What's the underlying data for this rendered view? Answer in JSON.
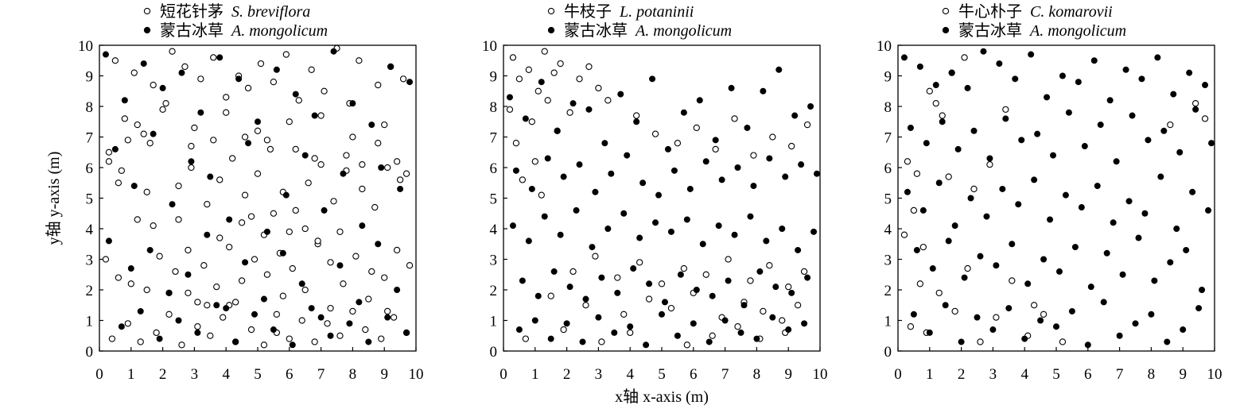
{
  "chart_data": [
    {
      "type": "scatter",
      "xlim": [
        0,
        10
      ],
      "ylim": [
        0,
        10
      ],
      "xticks": [
        "0",
        "1",
        "2",
        "3",
        "4",
        "5",
        "6",
        "7",
        "8",
        "9",
        "10"
      ],
      "yticks": [
        "0",
        "1",
        "2",
        "3",
        "4",
        "5",
        "6",
        "7",
        "8",
        "9",
        "10"
      ],
      "ylabel": "y轴 y-axis (m)",
      "grid": false,
      "legend_position": "top",
      "series": [
        {
          "name": "短花针茅",
          "name_latin": "S. breviflora",
          "marker": "open-circle",
          "color": "#000000",
          "x": [
            0.3,
            0.7,
            1.2,
            1.6,
            2.1,
            2.5,
            2.9,
            3.4,
            3.8,
            4.2,
            4.6,
            5.0,
            5.4,
            5.8,
            6.2,
            6.6,
            7.0,
            7.4,
            7.8,
            8.3,
            8.7,
            9.1,
            9.5,
            0.2,
            0.6,
            1.0,
            1.5,
            1.9,
            2.4,
            2.8,
            3.3,
            3.7,
            4.1,
            4.5,
            4.9,
            5.3,
            5.7,
            6.1,
            6.5,
            6.9,
            7.3,
            7.7,
            8.1,
            8.6,
            9.0,
            9.4,
            9.8,
            0.4,
            0.9,
            1.3,
            1.8,
            2.2,
            2.6,
            3.1,
            3.5,
            3.9,
            4.3,
            4.8,
            5.2,
            5.6,
            6.0,
            6.4,
            6.8,
            7.2,
            7.6,
            8.0,
            8.4,
            8.9,
            9.3,
            9.7,
            0.5,
            1.1,
            1.7,
            2.3,
            2.7,
            3.2,
            3.6,
            4.0,
            4.4,
            4.7,
            5.1,
            5.5,
            5.9,
            6.3,
            6.7,
            7.1,
            7.5,
            7.9,
            8.2,
            8.8,
            9.2,
            9.6,
            0.8,
            1.4,
            2.0,
            3.0,
            4.0,
            5.0,
            6.0,
            7.0,
            8.0,
            9.0,
            4.5,
            5.5,
            6.5,
            5.2,
            4.8,
            6.0,
            5.8,
            4.3,
            3.4,
            2.8,
            7.3,
            8.5,
            9.1,
            1.2,
            0.6,
            0.3,
            1.7,
            2.5,
            3.8,
            6.9,
            7.6,
            5.6,
            4.1,
            3.1,
            2.2,
            8.8,
            9.4,
            9.7,
            0.9,
            1.5,
            2.9,
            3.6,
            4.6,
            5.3,
            6.2,
            6.8,
            7.8,
            8.3
          ],
          "y": [
            6.2,
            5.9,
            7.4,
            6.8,
            8.1,
            5.4,
            6.0,
            4.8,
            5.6,
            6.3,
            5.1,
            5.8,
            6.6,
            5.2,
            4.6,
            5.5,
            6.1,
            4.9,
            6.4,
            5.3,
            4.7,
            6.0,
            5.6,
            3.0,
            2.4,
            2.2,
            2.0,
            3.1,
            2.6,
            3.3,
            2.8,
            2.1,
            3.4,
            2.3,
            3.0,
            2.5,
            3.2,
            2.7,
            2.0,
            3.5,
            2.9,
            2.2,
            3.1,
            2.6,
            2.4,
            3.3,
            2.8,
            0.4,
            0.9,
            0.3,
            0.6,
            1.2,
            0.2,
            0.8,
            0.5,
            1.1,
            0.3,
            0.7,
            0.2,
            0.6,
            0.4,
            1.0,
            0.3,
            0.9,
            0.5,
            1.3,
            0.7,
            0.4,
            1.1,
            0.6,
            9.5,
            9.1,
            8.7,
            9.8,
            9.3,
            8.9,
            9.6,
            8.3,
            9.0,
            8.6,
            9.4,
            8.8,
            9.7,
            8.2,
            9.2,
            8.5,
            9.9,
            8.1,
            9.5,
            8.7,
            9.3,
            8.9,
            7.6,
            7.1,
            7.9,
            7.3,
            7.8,
            7.2,
            7.5,
            7.7,
            7.0,
            7.4,
            4.2,
            4.5,
            4.0,
            3.8,
            4.4,
            3.9,
            1.8,
            1.6,
            1.5,
            1.9,
            1.4,
            1.7,
            1.3,
            4.3,
            5.5,
            6.5,
            4.1,
            4.3,
            3.7,
            3.6,
            3.9,
            1.2,
            1.5,
            1.6,
            1.9,
            6.8,
            6.2,
            5.8,
            6.9,
            5.2,
            6.7,
            6.9,
            7.0,
            6.9,
            6.6,
            6.3,
            5.9,
            6.1
          ]
        },
        {
          "name": "蒙古冰草",
          "name_latin": "A. mongolicum",
          "marker": "filled-circle",
          "color": "#000000",
          "x": [
            0.2,
            0.8,
            1.4,
            2.0,
            2.6,
            3.2,
            3.8,
            4.4,
            5.0,
            5.6,
            6.2,
            6.8,
            7.4,
            8.0,
            8.6,
            9.2,
            9.8,
            0.5,
            1.1,
            1.7,
            2.3,
            2.9,
            3.5,
            4.1,
            4.7,
            5.3,
            5.9,
            6.5,
            7.1,
            7.7,
            8.3,
            8.9,
            9.5,
            0.3,
            1.0,
            1.6,
            2.2,
            2.8,
            3.4,
            4.0,
            4.6,
            5.2,
            5.8,
            6.4,
            7.0,
            7.6,
            8.2,
            8.8,
            9.4,
            0.7,
            1.3,
            1.9,
            2.5,
            3.1,
            3.7,
            4.3,
            4.9,
            5.5,
            6.1,
            6.7,
            7.3,
            7.9,
            8.5,
            9.1,
            9.7
          ],
          "y": [
            9.7,
            8.2,
            9.4,
            8.6,
            9.1,
            7.8,
            9.6,
            8.9,
            7.5,
            9.2,
            8.4,
            7.7,
            9.8,
            8.1,
            7.4,
            9.3,
            8.8,
            6.6,
            5.4,
            7.1,
            4.8,
            6.2,
            5.7,
            4.3,
            6.8,
            3.9,
            5.1,
            6.4,
            4.6,
            5.8,
            4.1,
            6.0,
            5.3,
            3.6,
            2.7,
            3.3,
            1.9,
            2.5,
            3.8,
            1.4,
            2.9,
            1.7,
            3.2,
            2.2,
            1.1,
            2.8,
            1.6,
            3.5,
            2.0,
            0.8,
            1.3,
            0.4,
            1.0,
            0.6,
            1.5,
            0.3,
            1.2,
            0.7,
            0.2,
            1.4,
            0.5,
            0.9,
            0.3,
            1.1,
            0.6
          ]
        }
      ]
    },
    {
      "type": "scatter",
      "xlim": [
        0,
        10
      ],
      "ylim": [
        0,
        10
      ],
      "xticks": [
        "0",
        "1",
        "2",
        "3",
        "4",
        "5",
        "6",
        "7",
        "8",
        "9",
        "10"
      ],
      "yticks": [
        "0",
        "1",
        "2",
        "3",
        "4",
        "5",
        "6",
        "7",
        "8",
        "9",
        "10"
      ],
      "xlabel": "x轴 x-axis (m)",
      "grid": false,
      "legend_position": "top",
      "series": [
        {
          "name": "牛枝子",
          "name_latin": "L. potaninii",
          "marker": "open-circle",
          "color": "#000000",
          "x": [
            0.3,
            0.8,
            1.3,
            1.8,
            0.5,
            1.1,
            1.6,
            0.2,
            0.9,
            1.4,
            2.1,
            0.4,
            1.0,
            1.7,
            0.6,
            1.2,
            2.4,
            3.0,
            2.7,
            3.3,
            4.2,
            4.8,
            5.5,
            6.1,
            6.7,
            7.3,
            7.9,
            8.5,
            9.1,
            9.6,
            2.2,
            2.9,
            3.6,
            4.3,
            5.0,
            5.7,
            6.4,
            7.1,
            7.8,
            8.4,
            9.0,
            9.5,
            1.5,
            2.6,
            3.8,
            4.6,
            5.3,
            6.0,
            6.9,
            7.6,
            8.2,
            8.8,
            9.3,
            0.7,
            1.9,
            3.1,
            4.0,
            5.8,
            6.6,
            7.4,
            8.1,
            8.9
          ],
          "y": [
            9.6,
            9.2,
            9.8,
            9.4,
            8.9,
            8.5,
            9.1,
            7.9,
            7.5,
            8.2,
            7.8,
            6.8,
            6.2,
            7.2,
            5.6,
            5.1,
            8.9,
            8.6,
            9.3,
            8.2,
            7.7,
            7.1,
            6.8,
            7.3,
            6.6,
            7.6,
            6.4,
            7.0,
            6.7,
            7.4,
            2.6,
            3.1,
            2.4,
            2.9,
            2.2,
            2.7,
            2.5,
            3.0,
            2.3,
            2.8,
            2.1,
            2.6,
            1.8,
            1.5,
            1.2,
            1.7,
            1.4,
            1.9,
            1.1,
            1.6,
            1.3,
            1.0,
            1.5,
            0.4,
            0.7,
            0.3,
            0.6,
            0.2,
            0.5,
            0.8,
            0.4,
            0.6
          ]
        },
        {
          "name": "蒙古冰草",
          "name_latin": "A. mongolicum",
          "marker": "filled-circle",
          "color": "#000000",
          "x": [
            0.2,
            0.7,
            1.2,
            1.7,
            2.2,
            2.7,
            3.2,
            3.7,
            4.2,
            4.7,
            5.2,
            5.7,
            6.2,
            6.7,
            7.2,
            7.7,
            8.2,
            8.7,
            9.2,
            9.7,
            0.4,
            0.9,
            1.4,
            1.9,
            2.4,
            2.9,
            3.4,
            3.9,
            4.4,
            4.9,
            5.4,
            5.9,
            6.4,
            6.9,
            7.4,
            7.9,
            8.4,
            8.9,
            9.4,
            9.9,
            0.3,
            0.8,
            1.3,
            1.8,
            2.3,
            2.8,
            3.3,
            3.8,
            4.3,
            4.8,
            5.3,
            5.8,
            6.3,
            6.8,
            7.3,
            7.8,
            8.3,
            8.8,
            9.3,
            9.8,
            0.6,
            1.1,
            1.6,
            2.1,
            2.6,
            3.1,
            3.6,
            4.1,
            4.6,
            5.1,
            5.6,
            6.1,
            6.6,
            7.1,
            7.6,
            8.1,
            8.6,
            9.1,
            9.6,
            0.5,
            1.0,
            1.5,
            2.0,
            2.5,
            3.0,
            3.5,
            4.0,
            4.5,
            5.0,
            5.5,
            6.0,
            6.5,
            7.0,
            7.5,
            8.0,
            8.5,
            9.0,
            9.5
          ],
          "y": [
            8.3,
            7.6,
            8.8,
            7.2,
            8.1,
            7.9,
            6.8,
            8.4,
            7.5,
            8.9,
            6.6,
            7.8,
            8.2,
            6.9,
            8.6,
            7.3,
            8.5,
            9.2,
            7.7,
            8.0,
            5.9,
            5.3,
            6.3,
            5.7,
            6.1,
            5.2,
            5.8,
            6.4,
            5.5,
            5.1,
            5.9,
            5.3,
            6.2,
            5.6,
            6.0,
            5.4,
            6.3,
            5.7,
            6.1,
            5.8,
            4.1,
            3.6,
            4.4,
            3.8,
            4.6,
            3.4,
            4.0,
            4.5,
            3.7,
            4.2,
            3.9,
            4.3,
            3.5,
            4.1,
            3.8,
            4.4,
            3.6,
            4.0,
            3.3,
            3.9,
            2.3,
            1.8,
            2.6,
            2.1,
            1.7,
            2.4,
            1.9,
            2.7,
            2.2,
            1.6,
            2.5,
            2.0,
            1.8,
            2.3,
            1.5,
            2.6,
            2.1,
            1.9,
            2.4,
            0.7,
            1.0,
            0.4,
            0.9,
            0.3,
            1.1,
            0.6,
            0.8,
            0.2,
            1.2,
            0.5,
            0.9,
            0.3,
            1.0,
            0.6,
            0.4,
            1.1,
            0.7,
            0.9
          ]
        }
      ]
    },
    {
      "type": "scatter",
      "xlim": [
        0,
        10
      ],
      "ylim": [
        0,
        10
      ],
      "xticks": [
        "0",
        "1",
        "2",
        "3",
        "4",
        "5",
        "6",
        "7",
        "8",
        "9",
        "10"
      ],
      "yticks": [
        "0",
        "1",
        "2",
        "3",
        "4",
        "5",
        "6",
        "7",
        "8",
        "9",
        "10"
      ],
      "grid": false,
      "legend_position": "top",
      "series": [
        {
          "name": "牛心朴子",
          "name_latin": "C. komarovii",
          "marker": "open-circle",
          "color": "#000000",
          "x": [
            0.3,
            0.6,
            1.2,
            1.7,
            2.1,
            1.0,
            1.4,
            0.2,
            0.5,
            0.8,
            1.6,
            2.4,
            2.9,
            3.4,
            0.4,
            0.9,
            1.8,
            2.6,
            3.1,
            4.1,
            4.6,
            5.2,
            0.7,
            1.3,
            2.2,
            3.6,
            4.3,
            8.6,
            9.4,
            9.7
          ],
          "y": [
            6.2,
            5.8,
            8.1,
            9.1,
            9.6,
            8.5,
            7.7,
            3.8,
            4.6,
            3.4,
            5.7,
            5.3,
            6.1,
            7.9,
            0.8,
            0.6,
            1.3,
            0.3,
            1.1,
            0.5,
            1.2,
            0.3,
            2.2,
            1.9,
            2.7,
            2.3,
            1.5,
            7.4,
            8.1,
            7.6
          ]
        },
        {
          "name": "蒙古冰草",
          "name_latin": "A. mongolicum",
          "marker": "filled-circle",
          "color": "#000000",
          "x": [
            0.2,
            0.7,
            1.2,
            1.7,
            2.2,
            2.7,
            3.2,
            3.7,
            4.2,
            4.7,
            5.2,
            5.7,
            6.2,
            6.7,
            7.2,
            7.7,
            8.2,
            8.7,
            9.2,
            9.7,
            0.4,
            0.9,
            1.4,
            1.9,
            2.4,
            2.9,
            3.4,
            3.9,
            4.4,
            4.9,
            5.4,
            5.9,
            6.4,
            6.9,
            7.4,
            7.9,
            8.4,
            8.9,
            9.4,
            9.9,
            0.3,
            0.8,
            1.3,
            1.8,
            2.3,
            2.8,
            3.3,
            3.8,
            4.3,
            4.8,
            5.3,
            5.8,
            6.3,
            6.8,
            7.3,
            7.8,
            8.3,
            8.8,
            9.3,
            9.8,
            0.6,
            1.1,
            1.6,
            2.1,
            2.6,
            3.1,
            3.6,
            4.1,
            4.6,
            5.1,
            5.6,
            6.1,
            6.6,
            7.1,
            7.6,
            8.1,
            8.6,
            9.1,
            9.6,
            0.5,
            1.0,
            1.5,
            2.0,
            2.5,
            3.0,
            3.5,
            4.0,
            4.5,
            5.0,
            5.5,
            6.0,
            6.5,
            7.0,
            7.5,
            8.0,
            8.5,
            9.0,
            9.5
          ],
          "y": [
            9.6,
            9.3,
            8.7,
            9.1,
            8.6,
            9.8,
            9.4,
            8.9,
            9.7,
            8.3,
            9.0,
            8.8,
            9.5,
            8.2,
            9.2,
            8.9,
            9.6,
            8.4,
            9.1,
            8.7,
            7.3,
            6.8,
            7.5,
            6.6,
            7.2,
            6.3,
            7.6,
            6.9,
            7.1,
            6.4,
            7.8,
            6.7,
            7.4,
            6.2,
            7.7,
            6.9,
            7.2,
            6.5,
            7.9,
            6.8,
            5.2,
            4.6,
            5.5,
            4.1,
            5.0,
            4.4,
            5.3,
            4.8,
            5.6,
            4.3,
            5.1,
            4.7,
            5.4,
            4.2,
            4.9,
            4.5,
            5.7,
            4.0,
            5.2,
            4.6,
            3.3,
            2.7,
            3.6,
            2.4,
            3.1,
            2.8,
            3.5,
            2.2,
            3.0,
            2.6,
            3.4,
            2.1,
            3.2,
            2.5,
            3.7,
            2.3,
            2.9,
            3.3,
            2.0,
            1.2,
            0.6,
            1.5,
            0.3,
            1.1,
            0.7,
            1.4,
            0.4,
            1.0,
            0.8,
            1.3,
            0.2,
            1.6,
            0.5,
            0.9,
            1.2,
            0.3,
            0.7,
            1.4
          ]
        }
      ]
    }
  ]
}
